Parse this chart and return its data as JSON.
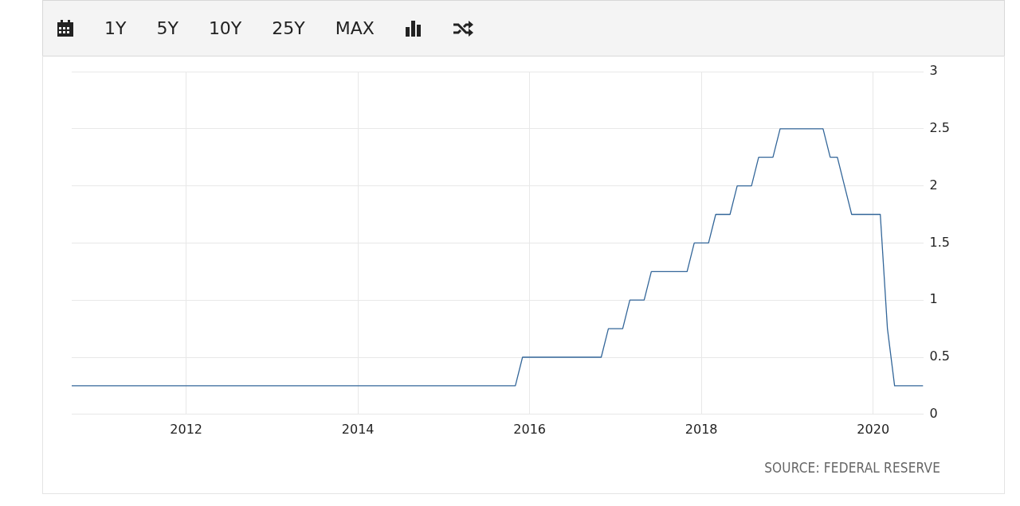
{
  "chart_data": {
    "type": "line",
    "x": [
      "2010-09",
      "2015-11",
      "2015-12",
      "2016-11",
      "2016-12",
      "2017-02",
      "2017-03",
      "2017-05",
      "2017-06",
      "2017-11",
      "2017-12",
      "2018-02",
      "2018-03",
      "2018-05",
      "2018-06",
      "2018-08",
      "2018-09",
      "2018-11",
      "2018-12",
      "2019-06",
      "2019-07",
      "2019-08",
      "2019-09",
      "2019-10",
      "2020-02",
      "2020-03",
      "2020-04",
      "2020-08"
    ],
    "series": [
      {
        "color": "#336699",
        "values": [
          0.25,
          0.25,
          0.5,
          0.5,
          0.75,
          0.75,
          1,
          1,
          1.25,
          1.25,
          1.5,
          1.5,
          1.75,
          1.75,
          2,
          2,
          2.25,
          2.25,
          2.5,
          2.5,
          2.25,
          2.25,
          2,
          1.75,
          1.75,
          0.75,
          0.25,
          0.25
        ]
      }
    ],
    "xlim": [
      "2010-09",
      "2020-08"
    ],
    "xticks": [
      "2012",
      "2014",
      "2016",
      "2018",
      "2020"
    ],
    "ylim": [
      0,
      3
    ],
    "yticks": [
      0,
      0.5,
      1,
      1.5,
      2,
      2.5,
      3
    ],
    "grid": true,
    "legend": false,
    "marker": "none",
    "line_style": "solid",
    "annotations": [
      "1Y",
      "5Y",
      "10Y",
      "25Y",
      "MAX",
      "SOURCE: FEDERAL RESERVE"
    ]
  }
}
